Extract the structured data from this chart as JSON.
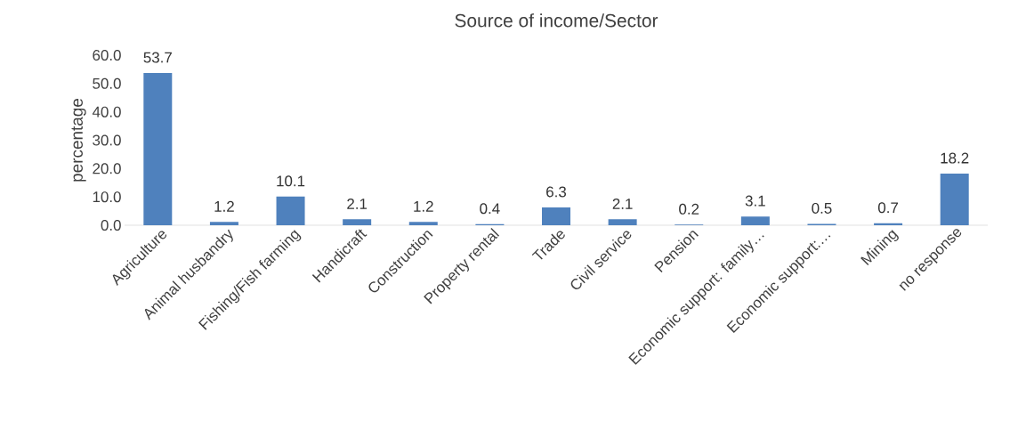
{
  "chart_data": {
    "type": "bar",
    "title": "Source of income/Sector",
    "ylabel": "percentage",
    "categories": [
      "Agriculture",
      "Animal husbandry",
      "Fishing/Fish farming",
      "Handicraft",
      "Construction",
      "Property rental",
      "Trade",
      "Civil service",
      "Pension",
      "Economic support: family…",
      "Economic support:…",
      "Mining",
      "no response"
    ],
    "values": [
      53.7,
      1.2,
      10.1,
      2.1,
      1.2,
      0.4,
      6.3,
      2.1,
      0.2,
      3.1,
      0.5,
      0.7,
      18.2
    ],
    "color": "#4f81bd",
    "ylim": [
      0,
      60
    ],
    "yticks": [
      {
        "value": 0,
        "label": "0.0"
      },
      {
        "value": 10,
        "label": "10.0"
      },
      {
        "value": 20,
        "label": "20.0"
      },
      {
        "value": 30,
        "label": "30.0"
      },
      {
        "value": 40,
        "label": "40.0"
      },
      {
        "value": 50,
        "label": "50.0"
      },
      {
        "value": 60,
        "label": "60.0"
      }
    ],
    "data_labels": true,
    "grid": false
  }
}
